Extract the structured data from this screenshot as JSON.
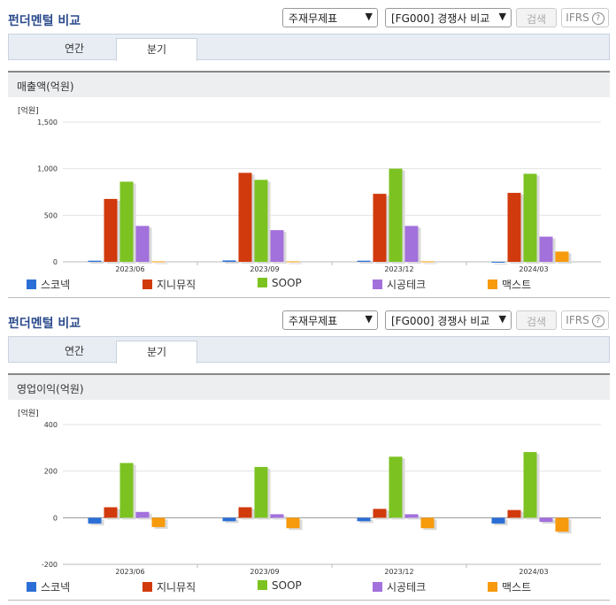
{
  "panels": [
    {
      "title": "펀더멘털 비교",
      "select1": "주재무제표",
      "select2": "[FG000] 경쟁사 비교",
      "search_button": "검색",
      "ifrs_button": "IFRS",
      "ifrs_help": "?",
      "tabs": [
        "연간",
        "분기"
      ],
      "section_title": "매출액(억원)",
      "unit_label": "[억원]"
    },
    {
      "title": "펀더멘털 비교",
      "select1": "주재무제표",
      "select2": "[FG000] 경쟁사 비교",
      "search_button": "검색",
      "ifrs_button": "IFRS",
      "ifrs_help": "?",
      "tabs": [
        "연간",
        "분기"
      ],
      "section_title": "영업이익(억원)",
      "unit_label": "[억원]"
    }
  ],
  "chart_data": [
    {
      "type": "bar",
      "title": "매출액(억원)",
      "ylabel": "[억원]",
      "categories": [
        "2023/06",
        "2023/09",
        "2023/12",
        "2024/03"
      ],
      "ylim": [
        0,
        1500
      ],
      "yticks": [
        "0",
        "500",
        "1,000",
        "1,500"
      ],
      "ytick_values": [
        0,
        500,
        1000,
        1500
      ],
      "grid": true,
      "legend": "bottom",
      "series": [
        {
          "name": "스코넥",
          "color": "#2b6fd6",
          "values": [
            12,
            15,
            12,
            0
          ]
        },
        {
          "name": "지니뮤직",
          "color": "#d13a0c",
          "values": [
            675,
            955,
            730,
            740
          ]
        },
        {
          "name": "SOOP",
          "color": "#7cc322",
          "values": [
            860,
            880,
            1000,
            945
          ]
        },
        {
          "name": "시공테크",
          "color": "#a271dc",
          "values": [
            385,
            340,
            385,
            270
          ]
        },
        {
          "name": "맥스트",
          "color": "#f79a0c",
          "values": [
            5,
            5,
            5,
            110
          ]
        }
      ]
    },
    {
      "type": "bar",
      "title": "영업이익(억원)",
      "ylabel": "[억원]",
      "categories": [
        "2023/06",
        "2023/09",
        "2023/12",
        "2024/03"
      ],
      "ylim": [
        -200,
        400
      ],
      "yticks": [
        "-200",
        "0",
        "200",
        "400"
      ],
      "ytick_values": [
        -200,
        0,
        200,
        400
      ],
      "grid": true,
      "legend": "bottom",
      "series": [
        {
          "name": "스코넥",
          "color": "#2b6fd6",
          "values": [
            -25,
            -15,
            -15,
            -25
          ]
        },
        {
          "name": "지니뮤직",
          "color": "#d13a0c",
          "values": [
            45,
            45,
            38,
            33
          ]
        },
        {
          "name": "SOOP",
          "color": "#7cc322",
          "values": [
            235,
            218,
            262,
            282
          ]
        },
        {
          "name": "시공테크",
          "color": "#a271dc",
          "values": [
            25,
            15,
            15,
            -18
          ]
        },
        {
          "name": "맥스트",
          "color": "#f79a0c",
          "values": [
            -40,
            -45,
            -45,
            -60
          ]
        }
      ]
    }
  ]
}
